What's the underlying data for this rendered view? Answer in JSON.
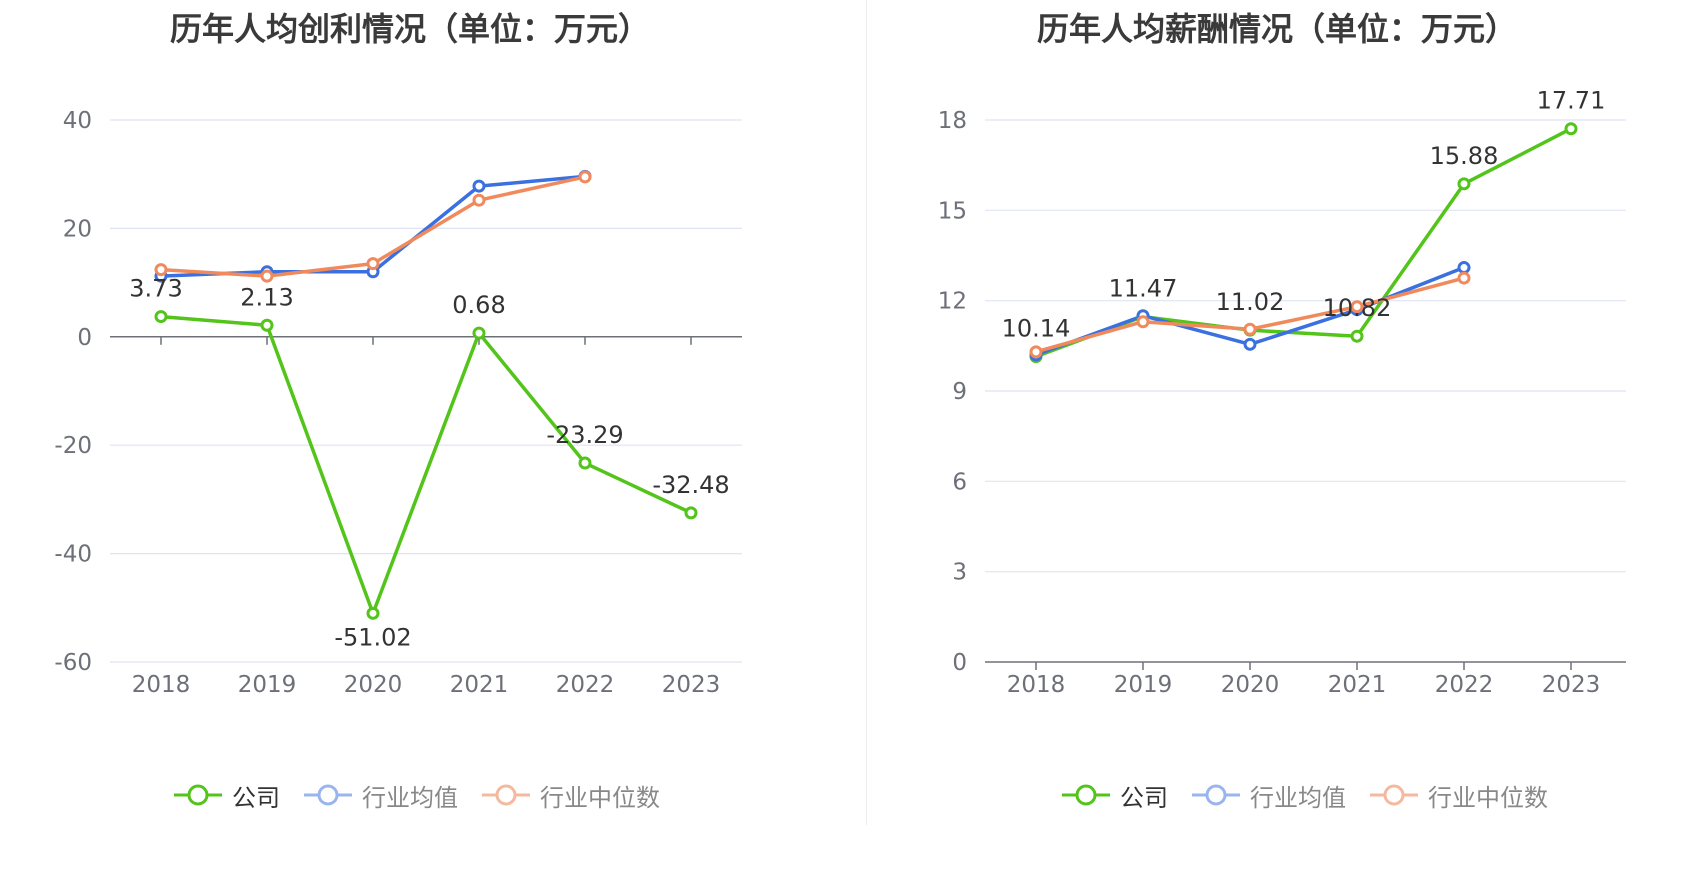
{
  "chart_data": [
    {
      "type": "line",
      "title": "历年人均创利情况（单位：万元）",
      "categories": [
        "2018",
        "2019",
        "2020",
        "2021",
        "2022",
        "2023"
      ],
      "ylim": [
        -60,
        40
      ],
      "yticks": [
        40,
        20,
        0,
        -20,
        -40,
        -60
      ],
      "series": [
        {
          "name": "公司",
          "color": "#52c41a",
          "values": [
            3.73,
            2.13,
            -51.02,
            0.68,
            -23.29,
            -32.48
          ],
          "labels": [
            "3.73",
            "2.13",
            "-51.02",
            "0.68",
            "-23.29",
            "-32.48"
          ]
        },
        {
          "name": "行业均值",
          "color": "#3a70e0",
          "values": [
            11.2,
            12.0,
            12.0,
            27.8,
            29.6,
            null
          ]
        },
        {
          "name": "行业中位数",
          "color": "#f08a5d",
          "values": [
            12.4,
            11.2,
            13.5,
            25.2,
            29.5,
            null
          ]
        }
      ],
      "legend": [
        "公司",
        "行业均值",
        "行业中位数"
      ]
    },
    {
      "type": "line",
      "title": "历年人均薪酬情况（单位：万元）",
      "categories": [
        "2018",
        "2019",
        "2020",
        "2021",
        "2022",
        "2023"
      ],
      "ylim": [
        0,
        18
      ],
      "yticks": [
        18,
        15,
        12,
        9,
        6,
        3,
        0
      ],
      "series": [
        {
          "name": "公司",
          "color": "#52c41a",
          "values": [
            10.14,
            11.47,
            11.02,
            10.82,
            15.88,
            17.71
          ],
          "labels": [
            "10.14",
            "11.47",
            "11.02",
            "10.82",
            "15.88",
            "17.71"
          ]
        },
        {
          "name": "行业均值",
          "color": "#3a70e0",
          "values": [
            10.2,
            11.5,
            10.55,
            11.7,
            13.1,
            null
          ]
        },
        {
          "name": "行业中位数",
          "color": "#f08a5d",
          "values": [
            10.3,
            11.3,
            11.05,
            11.8,
            12.75,
            null
          ]
        }
      ],
      "legend": [
        "公司",
        "行业均值",
        "行业中位数"
      ]
    }
  ]
}
